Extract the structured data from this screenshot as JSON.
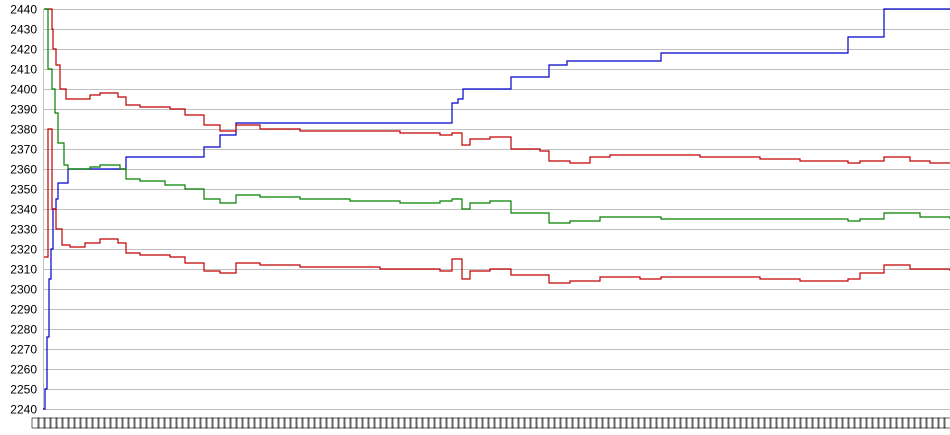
{
  "chart_data": {
    "type": "line",
    "step": true,
    "title": "",
    "xlabel": "",
    "ylabel": "",
    "ylim": [
      2240,
      2440
    ],
    "yticks": [
      2240,
      2250,
      2260,
      2270,
      2280,
      2290,
      2300,
      2310,
      2320,
      2330,
      2340,
      2350,
      2360,
      2370,
      2380,
      2390,
      2400,
      2410,
      2420,
      2430,
      2440
    ],
    "xlim": [
      0,
      907
    ],
    "grid": true,
    "x_tick_labels_legible": false,
    "series": [
      {
        "color": "#0000cc",
        "points": [
          [
            0,
            2240
          ],
          [
            2,
            2250
          ],
          [
            4,
            2276
          ],
          [
            6,
            2305
          ],
          [
            8,
            2320
          ],
          [
            10,
            2340
          ],
          [
            13,
            2345
          ],
          [
            15,
            2353
          ],
          [
            25,
            2360
          ],
          [
            83,
            2366
          ],
          [
            161,
            2371
          ],
          [
            177,
            2377
          ],
          [
            193,
            2383
          ],
          [
            409,
            2393
          ],
          [
            415,
            2395
          ],
          [
            420,
            2400
          ],
          [
            468,
            2406
          ],
          [
            506,
            2412
          ],
          [
            524,
            2414
          ],
          [
            618,
            2418
          ],
          [
            805,
            2426
          ],
          [
            841,
            2440
          ],
          [
            907,
            2440
          ]
        ]
      },
      {
        "color": "#c00000",
        "points": [
          [
            2,
            2440
          ],
          [
            9,
            2430
          ],
          [
            10,
            2420
          ],
          [
            13,
            2412
          ],
          [
            17,
            2400
          ],
          [
            23,
            2395
          ],
          [
            47,
            2397
          ],
          [
            57,
            2398
          ],
          [
            75,
            2396
          ],
          [
            83,
            2392
          ],
          [
            97,
            2391
          ],
          [
            127,
            2390
          ],
          [
            142,
            2387
          ],
          [
            161,
            2382
          ],
          [
            177,
            2379
          ],
          [
            193,
            2382
          ],
          [
            217,
            2380
          ],
          [
            257,
            2379
          ],
          [
            357,
            2378
          ],
          [
            397,
            2377
          ],
          [
            409,
            2378
          ],
          [
            419,
            2372
          ],
          [
            427,
            2375
          ],
          [
            447,
            2376
          ],
          [
            468,
            2370
          ],
          [
            497,
            2369
          ],
          [
            506,
            2364
          ],
          [
            527,
            2363
          ],
          [
            547,
            2366
          ],
          [
            567,
            2367
          ],
          [
            618,
            2367
          ],
          [
            657,
            2366
          ],
          [
            717,
            2365
          ],
          [
            757,
            2364
          ],
          [
            805,
            2363
          ],
          [
            817,
            2364
          ],
          [
            841,
            2366
          ],
          [
            867,
            2364
          ],
          [
            887,
            2363
          ],
          [
            907,
            2363
          ]
        ]
      },
      {
        "color": "#008000",
        "points": [
          [
            1,
            2440
          ],
          [
            5,
            2410
          ],
          [
            9,
            2400
          ],
          [
            12,
            2388
          ],
          [
            15,
            2373
          ],
          [
            21,
            2362
          ],
          [
            25,
            2360
          ],
          [
            47,
            2361
          ],
          [
            57,
            2362
          ],
          [
            77,
            2360
          ],
          [
            83,
            2355
          ],
          [
            97,
            2354
          ],
          [
            122,
            2352
          ],
          [
            142,
            2350
          ],
          [
            161,
            2345
          ],
          [
            177,
            2343
          ],
          [
            193,
            2347
          ],
          [
            217,
            2346
          ],
          [
            257,
            2345
          ],
          [
            307,
            2344
          ],
          [
            357,
            2343
          ],
          [
            397,
            2344
          ],
          [
            409,
            2345
          ],
          [
            419,
            2340
          ],
          [
            427,
            2343
          ],
          [
            447,
            2344
          ],
          [
            468,
            2338
          ],
          [
            497,
            2338
          ],
          [
            506,
            2333
          ],
          [
            527,
            2334
          ],
          [
            557,
            2336
          ],
          [
            618,
            2335
          ],
          [
            717,
            2335
          ],
          [
            805,
            2334
          ],
          [
            817,
            2335
          ],
          [
            841,
            2338
          ],
          [
            877,
            2336
          ],
          [
            907,
            2335
          ]
        ]
      },
      {
        "color": "#c00000",
        "points": [
          [
            1,
            2316
          ],
          [
            5,
            2380
          ],
          [
            9,
            2340
          ],
          [
            13,
            2330
          ],
          [
            19,
            2322
          ],
          [
            27,
            2321
          ],
          [
            42,
            2323
          ],
          [
            57,
            2325
          ],
          [
            75,
            2323
          ],
          [
            83,
            2318
          ],
          [
            97,
            2317
          ],
          [
            127,
            2316
          ],
          [
            142,
            2313
          ],
          [
            161,
            2309
          ],
          [
            177,
            2308
          ],
          [
            193,
            2313
          ],
          [
            217,
            2312
          ],
          [
            257,
            2311
          ],
          [
            337,
            2310
          ],
          [
            397,
            2309
          ],
          [
            409,
            2315
          ],
          [
            419,
            2305
          ],
          [
            427,
            2309
          ],
          [
            447,
            2310
          ],
          [
            468,
            2307
          ],
          [
            506,
            2303
          ],
          [
            527,
            2304
          ],
          [
            557,
            2306
          ],
          [
            597,
            2305
          ],
          [
            618,
            2306
          ],
          [
            657,
            2306
          ],
          [
            717,
            2305
          ],
          [
            757,
            2304
          ],
          [
            805,
            2305
          ],
          [
            817,
            2308
          ],
          [
            841,
            2312
          ],
          [
            867,
            2310
          ],
          [
            907,
            2309
          ]
        ]
      }
    ]
  }
}
